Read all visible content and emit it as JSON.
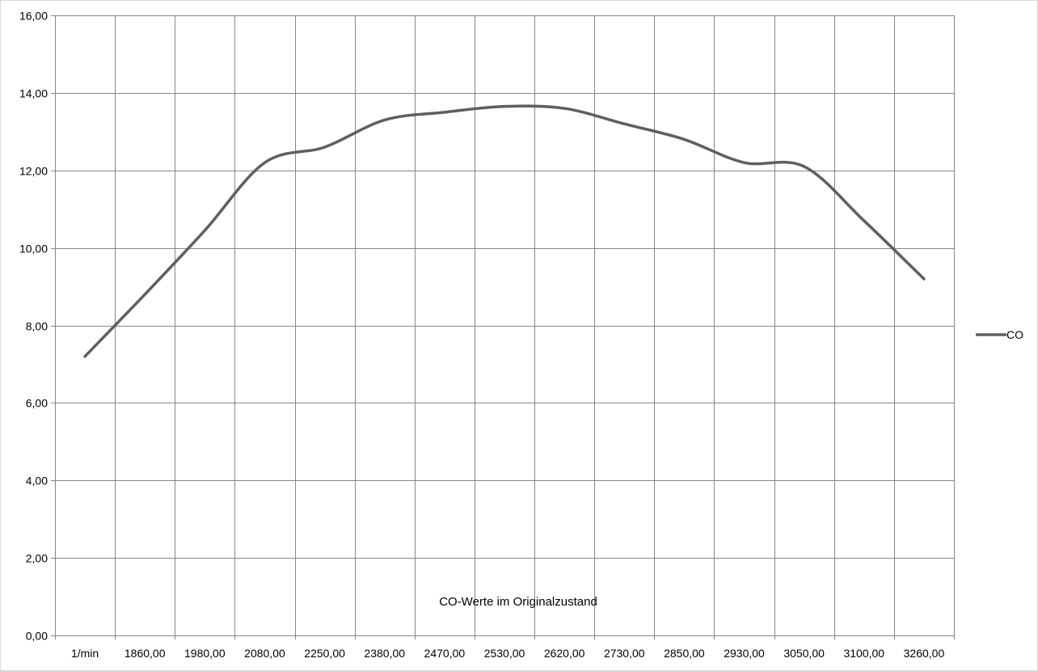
{
  "chart_data": {
    "type": "line",
    "title": "CO-Werte im Originalzustand",
    "xlabel": "",
    "ylabel": "",
    "categories": [
      "1/min",
      "1860,00",
      "1980,00",
      "2080,00",
      "2250,00",
      "2380,00",
      "2470,00",
      "2530,00",
      "2620,00",
      "2730,00",
      "2850,00",
      "2930,00",
      "3050,00",
      "3100,00",
      "3260,00"
    ],
    "series": [
      {
        "name": "CO",
        "color": "#5f5f5f",
        "values": [
          7.2,
          8.8,
          10.45,
          12.2,
          12.6,
          13.3,
          13.5,
          13.65,
          13.6,
          13.2,
          12.8,
          12.2,
          12.1,
          10.7,
          9.2
        ]
      }
    ],
    "ylim": [
      0,
      16
    ],
    "yticks": [
      "0,00",
      "2,00",
      "4,00",
      "6,00",
      "8,00",
      "10,00",
      "12,00",
      "14,00",
      "16,00"
    ],
    "grid": true,
    "smooth": true,
    "legend_position": "right",
    "colors": {
      "grid": "#868686",
      "border": "#d9d9d9"
    }
  }
}
